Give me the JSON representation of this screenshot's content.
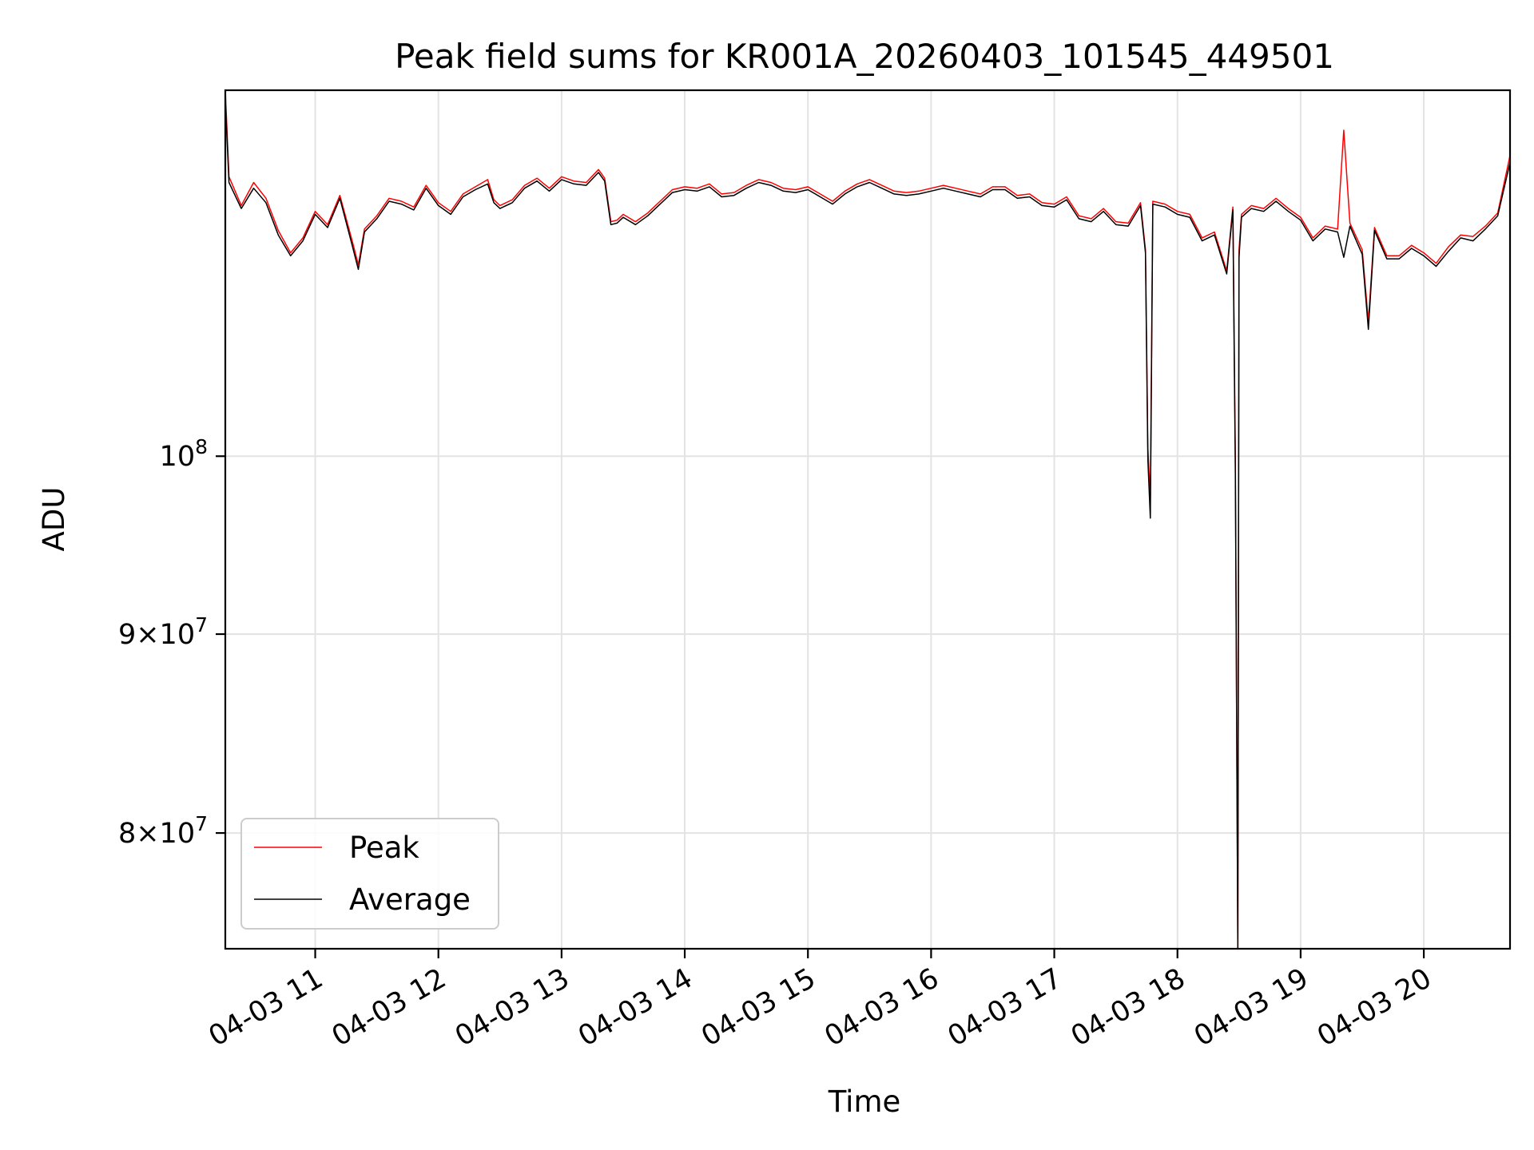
{
  "chart_data": {
    "type": "line",
    "title": "Peak field sums for KR001A_20260403_101545_449501",
    "xlabel": "Time",
    "ylabel": "ADU",
    "yscale": "log",
    "xlim": [
      10.27,
      20.7
    ],
    "ylim": [
      74700000,
      124200000
    ],
    "x_ticks": [
      {
        "value": 11,
        "label": "04-03 11"
      },
      {
        "value": 12,
        "label": "04-03 12"
      },
      {
        "value": 13,
        "label": "04-03 13"
      },
      {
        "value": 14,
        "label": "04-03 14"
      },
      {
        "value": 15,
        "label": "04-03 15"
      },
      {
        "value": 16,
        "label": "04-03 16"
      },
      {
        "value": 17,
        "label": "04-03 17"
      },
      {
        "value": 18,
        "label": "04-03 18"
      },
      {
        "value": 19,
        "label": "04-03 19"
      },
      {
        "value": 20,
        "label": "04-03 20"
      }
    ],
    "y_ticks": [
      {
        "value": 80000000,
        "mantissa": "8",
        "base": "10",
        "exp": "7"
      },
      {
        "value": 90000000,
        "mantissa": "9",
        "base": "10",
        "exp": "7"
      },
      {
        "value": 100000000,
        "mantissa": "",
        "base": "10",
        "exp": "8"
      }
    ],
    "grid": true,
    "legend_position": "lower-left",
    "series": [
      {
        "name": "Peak",
        "color": "#ff0000",
        "x": [
          10.27,
          10.3,
          10.4,
          10.5,
          10.6,
          10.7,
          10.8,
          10.9,
          11.0,
          11.1,
          11.2,
          11.3,
          11.35,
          11.4,
          11.5,
          11.6,
          11.7,
          11.8,
          11.9,
          12.0,
          12.1,
          12.2,
          12.3,
          12.4,
          12.45,
          12.5,
          12.6,
          12.7,
          12.8,
          12.9,
          13.0,
          13.1,
          13.2,
          13.3,
          13.35,
          13.4,
          13.45,
          13.5,
          13.6,
          13.7,
          13.8,
          13.9,
          14.0,
          14.1,
          14.2,
          14.3,
          14.4,
          14.5,
          14.6,
          14.7,
          14.8,
          14.9,
          15.0,
          15.1,
          15.2,
          15.3,
          15.4,
          15.5,
          15.6,
          15.7,
          15.8,
          15.9,
          16.0,
          16.1,
          16.2,
          16.3,
          16.4,
          16.5,
          16.6,
          16.7,
          16.8,
          16.9,
          17.0,
          17.1,
          17.2,
          17.3,
          17.4,
          17.5,
          17.6,
          17.7,
          17.74,
          17.76,
          17.78,
          17.8,
          17.9,
          18.0,
          18.1,
          18.2,
          18.3,
          18.4,
          18.45,
          18.47,
          18.49,
          18.5,
          18.52,
          18.6,
          18.7,
          18.8,
          18.9,
          19.0,
          19.1,
          19.2,
          19.3,
          19.35,
          19.4,
          19.5,
          19.55,
          19.6,
          19.7,
          19.8,
          19.9,
          20.0,
          20.1,
          20.2,
          20.3,
          20.4,
          20.5,
          20.6,
          20.7
        ],
        "values": [
          124200000,
          118000000,
          116000000,
          117600000,
          116500000,
          114300000,
          112800000,
          113800000,
          115600000,
          114700000,
          116700000,
          113600000,
          112000000,
          114400000,
          115300000,
          116500000,
          116300000,
          115900000,
          117400000,
          116200000,
          115600000,
          116800000,
          117300000,
          117800000,
          116400000,
          116000000,
          116400000,
          117400000,
          117900000,
          117200000,
          118000000,
          117700000,
          117600000,
          118500000,
          117900000,
          114900000,
          115000000,
          115400000,
          114900000,
          115500000,
          116300000,
          117100000,
          117300000,
          117200000,
          117500000,
          116800000,
          116900000,
          117400000,
          117800000,
          117600000,
          117200000,
          117100000,
          117300000,
          116800000,
          116300000,
          117000000,
          117500000,
          117800000,
          117400000,
          117000000,
          116900000,
          117000000,
          117200000,
          117400000,
          117200000,
          117000000,
          116800000,
          117300000,
          117300000,
          116700000,
          116800000,
          116200000,
          116100000,
          116600000,
          115300000,
          115100000,
          115800000,
          114900000,
          114800000,
          116200000,
          113000000,
          100500000,
          97500000,
          116300000,
          116100000,
          115600000,
          115400000,
          113800000,
          114200000,
          111600000,
          115900000,
          100000000,
          74700000,
          113000000,
          115400000,
          116000000,
          115800000,
          116500000,
          115800000,
          115200000,
          113800000,
          114600000,
          114400000,
          121300000,
          114800000,
          113000000,
          108300000,
          114500000,
          112600000,
          112600000,
          113300000,
          112800000,
          112100000,
          113200000,
          114000000,
          113900000,
          114600000,
          115500000,
          119500000
        ]
      },
      {
        "name": "Average",
        "color": "#000000",
        "x": [
          10.27,
          10.3,
          10.4,
          10.5,
          10.6,
          10.7,
          10.8,
          10.9,
          11.0,
          11.1,
          11.2,
          11.3,
          11.35,
          11.4,
          11.5,
          11.6,
          11.7,
          11.8,
          11.9,
          12.0,
          12.1,
          12.2,
          12.3,
          12.4,
          12.45,
          12.5,
          12.6,
          12.7,
          12.8,
          12.9,
          13.0,
          13.1,
          13.2,
          13.3,
          13.35,
          13.4,
          13.45,
          13.5,
          13.6,
          13.7,
          13.8,
          13.9,
          14.0,
          14.1,
          14.2,
          14.3,
          14.4,
          14.5,
          14.6,
          14.7,
          14.8,
          14.9,
          15.0,
          15.1,
          15.2,
          15.3,
          15.4,
          15.5,
          15.6,
          15.7,
          15.8,
          15.9,
          16.0,
          16.1,
          16.2,
          16.3,
          16.4,
          16.5,
          16.6,
          16.7,
          16.8,
          16.9,
          17.0,
          17.1,
          17.2,
          17.3,
          17.4,
          17.5,
          17.6,
          17.7,
          17.74,
          17.76,
          17.78,
          17.8,
          17.9,
          18.0,
          18.1,
          18.2,
          18.3,
          18.4,
          18.45,
          18.47,
          18.49,
          18.5,
          18.52,
          18.6,
          18.7,
          18.8,
          18.9,
          19.0,
          19.1,
          19.2,
          19.3,
          19.35,
          19.4,
          19.5,
          19.55,
          19.6,
          19.7,
          19.8,
          19.9,
          20.0,
          20.1,
          20.2,
          20.3,
          20.4,
          20.5,
          20.6,
          20.7
        ],
        "values": [
          123500000,
          117600000,
          115800000,
          117200000,
          116200000,
          114000000,
          112600000,
          113600000,
          115400000,
          114500000,
          116500000,
          113300000,
          111700000,
          114200000,
          115100000,
          116300000,
          116100000,
          115700000,
          117200000,
          116000000,
          115400000,
          116600000,
          117100000,
          117500000,
          116200000,
          115800000,
          116200000,
          117200000,
          117700000,
          117000000,
          117800000,
          117500000,
          117400000,
          118300000,
          117700000,
          114700000,
          114800000,
          115200000,
          114700000,
          115300000,
          116100000,
          116900000,
          117100000,
          117000000,
          117300000,
          116600000,
          116700000,
          117200000,
          117600000,
          117400000,
          117000000,
          116900000,
          117100000,
          116600000,
          116100000,
          116800000,
          117300000,
          117600000,
          117200000,
          116800000,
          116700000,
          116800000,
          117000000,
          117200000,
          117000000,
          116800000,
          116600000,
          117100000,
          117100000,
          116500000,
          116600000,
          116000000,
          115900000,
          116400000,
          115100000,
          114900000,
          115600000,
          114700000,
          114600000,
          116000000,
          112800000,
          99800000,
          96400000,
          116100000,
          115900000,
          115400000,
          115200000,
          113600000,
          114000000,
          111400000,
          115700000,
          99000000,
          74700000,
          112500000,
          115200000,
          115800000,
          115600000,
          116300000,
          115600000,
          115000000,
          113600000,
          114400000,
          114200000,
          112500000,
          114600000,
          112700000,
          107800000,
          114300000,
          112400000,
          112400000,
          113100000,
          112600000,
          111900000,
          112900000,
          113800000,
          113600000,
          114400000,
          115300000,
          119000000
        ]
      }
    ]
  }
}
